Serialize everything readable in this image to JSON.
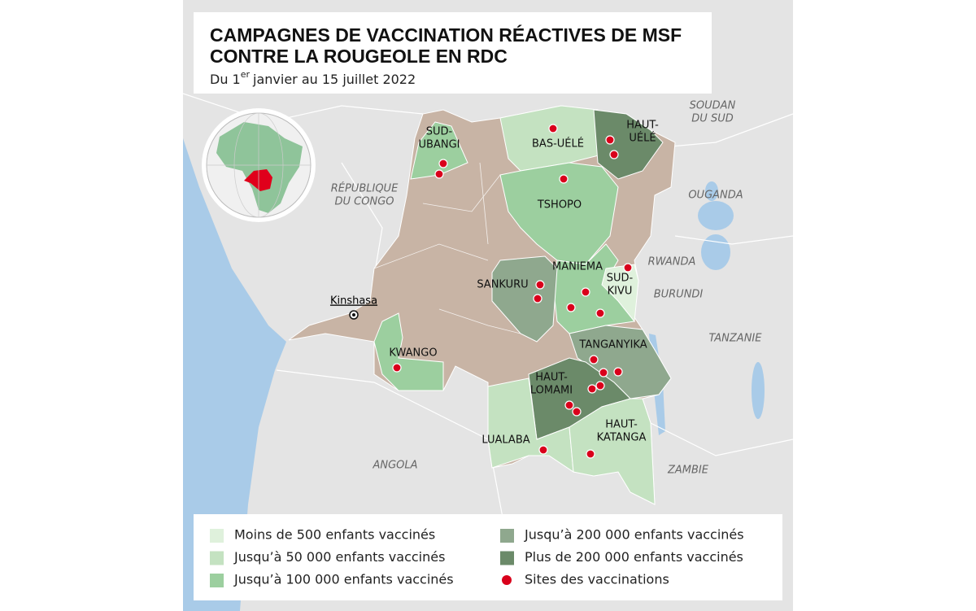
{
  "title": [
    "CAMPAGNES DE VACCINATION RÉACTIVES DE MSF",
    "CONTRE LA ROUGEOLE EN RDC"
  ],
  "subtitle": {
    "start": "Du 1",
    "sup": "er",
    "end": "janvier au 15 juillet 2022"
  },
  "city": "Kinshasa",
  "legend": [
    {
      "label": "Moins de 500 enfants vaccinés",
      "color": "#dff1dc"
    },
    {
      "label": "Jusqu’à 50 000 enfants vaccinés",
      "color": "#c4e2c1"
    },
    {
      "label": "Jusqu’à 100 000 enfants vaccinés",
      "color": "#9ccf9f"
    },
    {
      "label": "Jusqu’à 200 000 enfants vaccinés",
      "color": "#8fa88e"
    },
    {
      "label": "Plus de 200 000 enfants vaccinés",
      "color": "#6b8a69"
    },
    {
      "label": "Sites des vaccinations",
      "color": "#d9001b"
    }
  ],
  "provinces": [
    {
      "lines": [
        "SUD-",
        "UBANGI"
      ],
      "level": 2
    },
    {
      "lines": [
        "BAS-UÉLÉ"
      ],
      "level": 1
    },
    {
      "lines": [
        "HAUT-",
        "UÉLÉ"
      ],
      "level": 4
    },
    {
      "lines": [
        "TSHOPO"
      ],
      "level": 2
    },
    {
      "lines": [
        "MANIEMA"
      ],
      "level": 2
    },
    {
      "lines": [
        "SUD-",
        "KIVU"
      ],
      "level": 0
    },
    {
      "lines": [
        "SANKURU"
      ],
      "level": 3
    },
    {
      "lines": [
        "KWANGO"
      ],
      "level": 2
    },
    {
      "lines": [
        "TANGANYIKA"
      ],
      "level": 3
    },
    {
      "lines": [
        "HAUT-",
        "LOMAMI"
      ],
      "level": 4
    },
    {
      "lines": [
        "LUALABA"
      ],
      "level": 1
    },
    {
      "lines": [
        "HAUT-",
        "KATANGA"
      ],
      "level": 1
    }
  ],
  "countries": [
    {
      "lines": [
        "SOUDAN",
        "DU SUD"
      ]
    },
    {
      "lines": [
        "RÉPUBLIQUE",
        "DU CONGO"
      ]
    },
    {
      "lines": [
        "OUGANDA"
      ]
    },
    {
      "lines": [
        "RWANDA"
      ]
    },
    {
      "lines": [
        "BURUNDI"
      ]
    },
    {
      "lines": [
        "TANZANIE"
      ]
    },
    {
      "lines": [
        "ANGOLA"
      ]
    },
    {
      "lines": [
        "ZAMBIE"
      ]
    }
  ]
}
